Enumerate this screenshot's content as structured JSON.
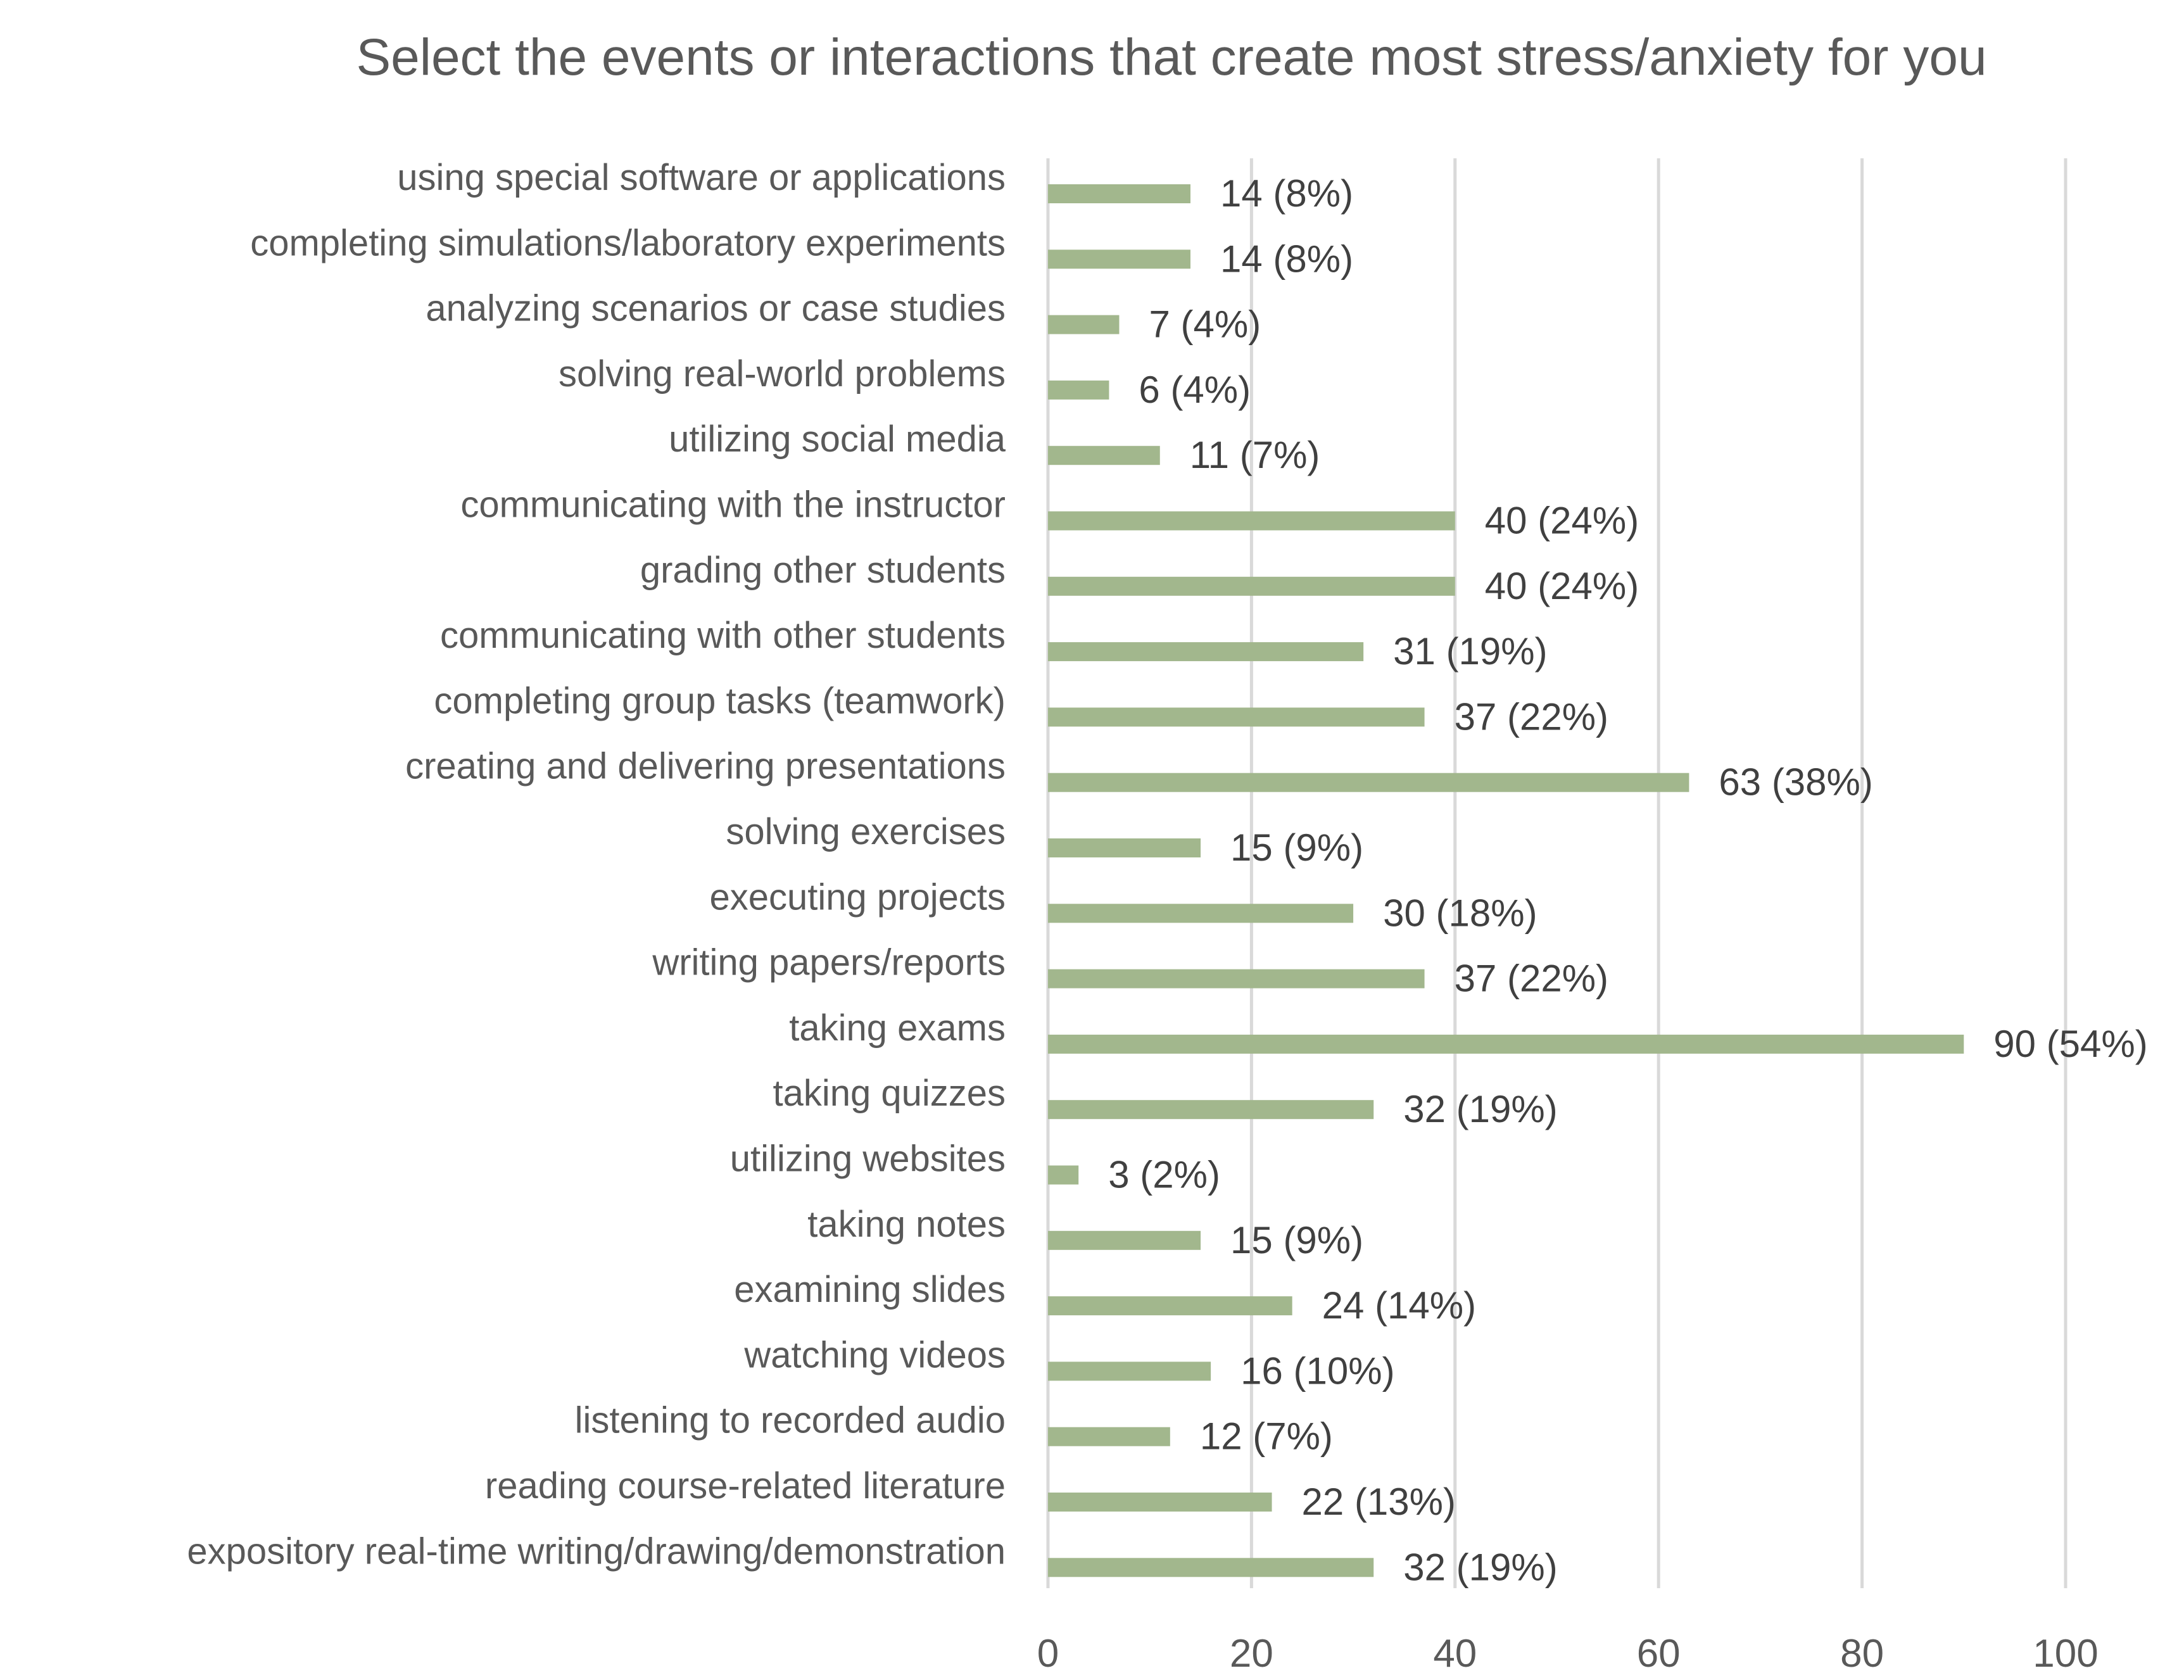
{
  "chart_data": {
    "type": "bar",
    "orientation": "horizontal",
    "title": "Select the events or interactions that create most stress/anxiety for you",
    "xlabel": "",
    "ylabel": "",
    "xlim": [
      0,
      100
    ],
    "ticks": [
      0,
      20,
      40,
      60,
      80,
      100
    ],
    "grid": true,
    "bar_color": "#a2b78d",
    "categories": [
      "using special software or applications",
      "completing simulations/laboratory experiments",
      "analyzing scenarios or case studies",
      "solving real-world problems",
      "utilizing social media",
      "communicating with the instructor",
      "grading other students",
      "communicating with other students",
      "completing group tasks (teamwork)",
      "creating and delivering presentations",
      "solving exercises",
      "executing projects",
      "writing papers/reports",
      "taking exams",
      "taking quizzes",
      "utilizing websites",
      "taking notes",
      "examining slides",
      "watching videos",
      "listening to recorded audio",
      "reading course-related literature",
      "expository real-time writing/drawing/demonstration"
    ],
    "values": [
      14,
      14,
      7,
      6,
      11,
      40,
      40,
      31,
      37,
      63,
      15,
      30,
      37,
      90,
      32,
      3,
      15,
      24,
      16,
      12,
      22,
      32
    ],
    "data_labels": [
      "14 (8%)",
      "14 (8%)",
      "7 (4%)",
      "6 (4%)",
      "11 (7%)",
      "40 (24%)",
      "40 (24%)",
      "31 (19%)",
      "37 (22%)",
      "63 (38%)",
      "15 (9%)",
      "30 (18%)",
      "37 (22%)",
      "90 (54%)",
      "32 (19%)",
      "3 (2%)",
      "15 (9%)",
      "24 (14%)",
      "16 (10%)",
      "12 (7%)",
      "22 (13%)",
      "32 (19%)"
    ]
  }
}
